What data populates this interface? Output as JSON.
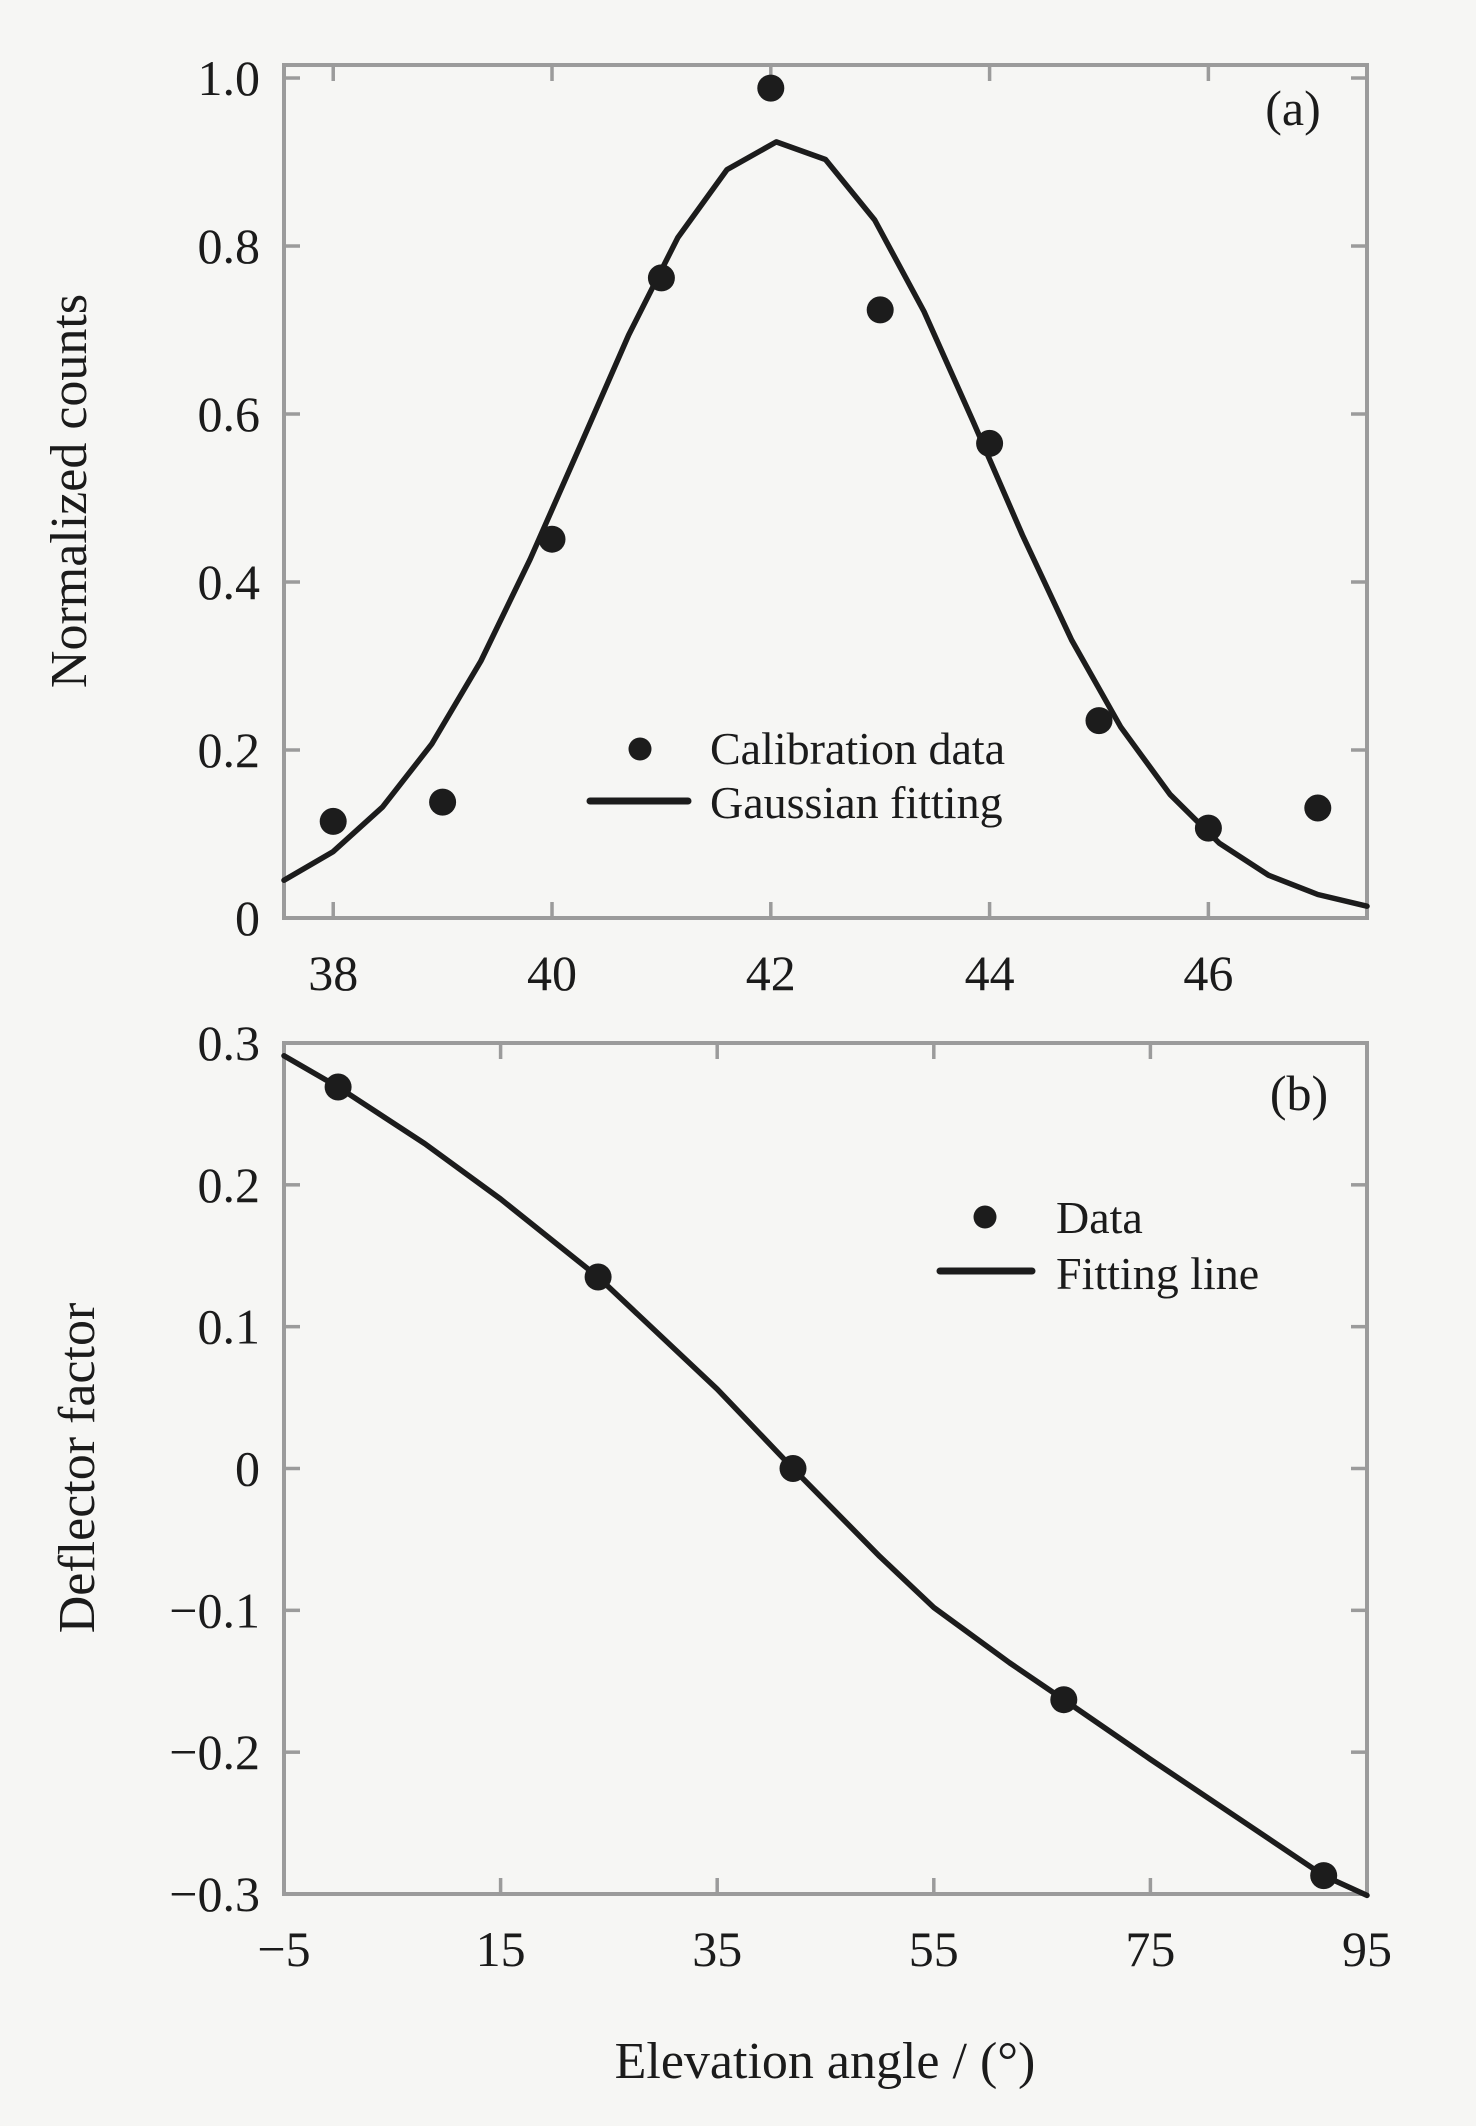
{
  "figure": {
    "background_color": "#f6f6f4",
    "ink_color": "#1c1c1c",
    "axis_color": "#9b9b9b",
    "description": "Two stacked scatter plots with fitted curves"
  },
  "chart_data": [
    {
      "type": "scatter",
      "panel_label": "(a)",
      "title": "",
      "xlabel": "",
      "ylabel": "Normalized counts",
      "xlim": [
        37.55,
        47.45
      ],
      "ylim": [
        0,
        1.0155
      ],
      "x_ticks": [
        38,
        40,
        42,
        44,
        46
      ],
      "x_tick_labels": [
        "38",
        "40",
        "42",
        "44",
        "46"
      ],
      "y_ticks": [
        0,
        0.2,
        0.4,
        0.6,
        0.8,
        1.0
      ],
      "y_tick_labels": [
        "0",
        "0.2",
        "0.4",
        "0.6",
        "0.8",
        "1.0"
      ],
      "grid": false,
      "legend_position": "center",
      "series": [
        {
          "name": "Calibration data",
          "type": "scatter",
          "points": [
            [
              38,
              0.115
            ],
            [
              39,
              0.138
            ],
            [
              40,
              0.451
            ],
            [
              41,
              0.762
            ],
            [
              42,
              0.988
            ],
            [
              43,
              0.724
            ],
            [
              44,
              0.565
            ],
            [
              45,
              0.235
            ],
            [
              46,
              0.107
            ],
            [
              47,
              0.131
            ]
          ]
        },
        {
          "name": "Gaussian fitting",
          "type": "line",
          "fit_model": {
            "type": "gaussian",
            "amplitude": 0.924,
            "mean": 42.1,
            "sigma": 1.85
          },
          "points": [
            [
              37.55,
              0.045
            ],
            [
              38,
              0.079
            ],
            [
              38.45,
              0.132
            ],
            [
              38.9,
              0.207
            ],
            [
              39.35,
              0.306
            ],
            [
              39.8,
              0.427
            ],
            [
              40.25,
              0.56
            ],
            [
              40.7,
              0.694
            ],
            [
              41.15,
              0.81
            ],
            [
              41.6,
              0.891
            ],
            [
              42.05,
              0.924
            ],
            [
              42.5,
              0.903
            ],
            [
              42.95,
              0.831
            ],
            [
              43.4,
              0.722
            ],
            [
              43.85,
              0.591
            ],
            [
              44.3,
              0.456
            ],
            [
              44.75,
              0.331
            ],
            [
              45.2,
              0.227
            ],
            [
              45.65,
              0.147
            ],
            [
              46.1,
              0.089
            ],
            [
              46.55,
              0.051
            ],
            [
              47,
              0.028
            ],
            [
              47.45,
              0.014
            ]
          ]
        }
      ]
    },
    {
      "type": "scatter",
      "panel_label": "(b)",
      "title": "",
      "xlabel": "Elevation angle / (°)",
      "ylabel": "Deflector factor",
      "xlim": [
        -5,
        95
      ],
      "ylim": [
        -0.3,
        0.3
      ],
      "x_ticks": [
        -5,
        15,
        35,
        55,
        75,
        95
      ],
      "x_tick_labels": [
        "−5",
        "15",
        "35",
        "55",
        "75",
        "95"
      ],
      "y_ticks": [
        -0.3,
        -0.2,
        -0.1,
        0,
        0.1,
        0.2,
        0.3
      ],
      "y_tick_labels": [
        "−0.3",
        "−0.2",
        "−0.1",
        "0",
        "0.1",
        "0.2",
        "0.3"
      ],
      "grid": false,
      "legend_position": "upper-right",
      "series": [
        {
          "name": "Data",
          "type": "scatter",
          "points": [
            [
              0,
              0.269
            ],
            [
              24,
              0.135
            ],
            [
              42,
              0
            ],
            [
              67,
              -0.163
            ],
            [
              91,
              -0.287
            ]
          ]
        },
        {
          "name": "Fitting line",
          "type": "line",
          "fit_model": {
            "type": "smooth-decreasing",
            "start": [
              -5,
              0.291
            ],
            "end": [
              95,
              -0.301
            ]
          },
          "points": [
            [
              -5,
              0.291
            ],
            [
              0,
              0.269
            ],
            [
              8,
              0.229
            ],
            [
              15,
              0.19
            ],
            [
              24,
              0.135
            ],
            [
              35,
              0.056
            ],
            [
              42,
              0
            ],
            [
              50,
              -0.062
            ],
            [
              55,
              -0.098
            ],
            [
              62,
              -0.137
            ],
            [
              67,
              -0.163
            ],
            [
              75,
              -0.205
            ],
            [
              83,
              -0.246
            ],
            [
              91,
              -0.287
            ],
            [
              95,
              -0.301
            ]
          ]
        }
      ]
    }
  ]
}
